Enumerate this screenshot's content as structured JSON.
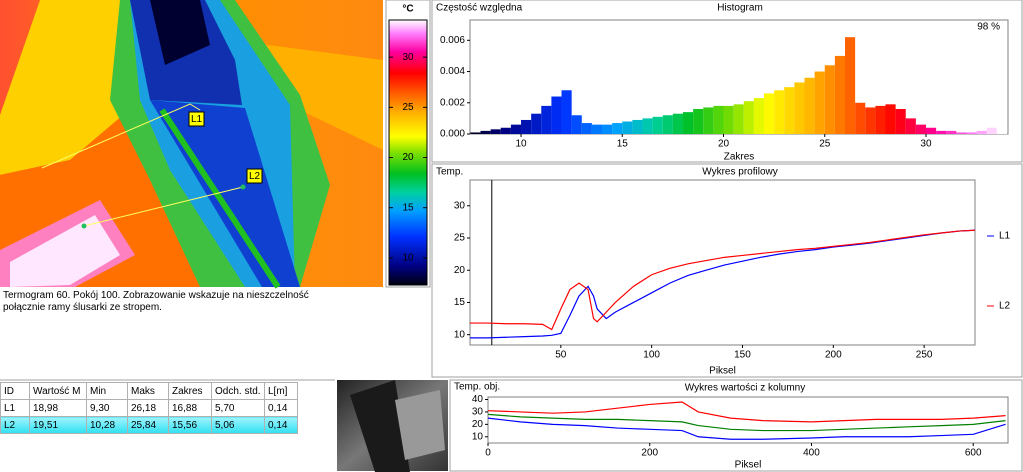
{
  "thermogram": {
    "labels": [
      "L1",
      "L2"
    ]
  },
  "colorbar": {
    "unit": "°C",
    "ylim": [
      7.3,
      33.7
    ],
    "yticks": [
      10,
      15,
      20,
      25,
      30
    ]
  },
  "caption": "Termogram 60. Pokój 100. Zobrazowanie wskazuje na nieszczelność połącznie ramy ślusarki ze stropem.",
  "table": {
    "header": [
      "ID",
      "Wartość M",
      "Min",
      "Maks",
      "Zakres",
      "Odch. std.",
      "L[m]"
    ],
    "rows": [
      [
        "L1",
        "18,98",
        "9,30",
        "26,18",
        "16,88",
        "5,70",
        "0,14"
      ],
      [
        "L2",
        "19,51",
        "10,28",
        "25,84",
        "15,56",
        "5,06",
        "0,14"
      ]
    ]
  },
  "chart_data": [
    {
      "type": "histogram",
      "title": "Histogram",
      "ylabel": "Częstość względna",
      "xlabel": "Zakres",
      "annotation": "98 %",
      "bins": [
        7.5,
        8,
        8.5,
        9,
        9.5,
        10,
        10.5,
        11,
        11.5,
        12,
        12.5,
        13,
        13.5,
        14,
        14.5,
        15,
        15.5,
        16,
        16.5,
        17,
        17.5,
        18,
        18.5,
        19,
        19.5,
        20,
        20.5,
        21,
        21.5,
        22,
        22.5,
        23,
        23.5,
        24,
        24.5,
        25,
        25.5,
        26,
        26.5,
        27,
        27.5,
        28,
        28.5,
        29,
        29.5,
        30,
        30.5,
        31,
        31.5,
        32,
        32.5,
        33,
        33.5,
        34
      ],
      "counts": [
        0.0001,
        0.0002,
        0.0003,
        0.0004,
        0.0006,
        0.0009,
        0.0013,
        0.0018,
        0.0024,
        0.0028,
        0.0012,
        0.0007,
        0.0006,
        0.0006,
        0.0007,
        0.0008,
        0.0009,
        0.001,
        0.0011,
        0.0012,
        0.0013,
        0.0014,
        0.0016,
        0.0017,
        0.0018,
        0.0018,
        0.0019,
        0.0021,
        0.0023,
        0.0026,
        0.0028,
        0.003,
        0.0033,
        0.0036,
        0.004,
        0.0044,
        0.005,
        0.0062,
        0.002,
        0.0017,
        0.0018,
        0.0019,
        0.0016,
        0.001,
        0.0006,
        0.0004,
        0.0002,
        0.0002,
        0.0001,
        0.0001,
        0.0002,
        0.0004,
        0.0006
      ],
      "xlim": [
        7.48,
        34.05
      ],
      "ylim": [
        0,
        0.0073
      ],
      "xticks": [
        10,
        15,
        20,
        25,
        30
      ],
      "yticks": [
        {
          "value": 0,
          "label": "0.000"
        },
        {
          "value": 0.002,
          "label": "0.002"
        },
        {
          "value": 0.004,
          "label": "0.004"
        },
        {
          "value": 0.006,
          "label": "0.006"
        }
      ]
    },
    {
      "type": "line",
      "title": "Wykres profilowy",
      "ylabel": "Temp.",
      "xlabel": "Piksel",
      "legend": "right",
      "x": [
        0,
        10,
        20,
        30,
        40,
        45,
        50,
        55,
        60,
        65,
        68,
        70,
        75,
        80,
        90,
        100,
        110,
        120,
        130,
        140,
        150,
        160,
        170,
        180,
        190,
        200,
        210,
        220,
        230,
        240,
        250,
        260,
        270,
        278
      ],
      "series": [
        {
          "name": "L1",
          "color": "#0000ff",
          "values": [
            9.5,
            9.5,
            9.6,
            9.7,
            9.8,
            9.9,
            10.2,
            13,
            16,
            17.5,
            16,
            14,
            12.5,
            13.5,
            15,
            16.5,
            18,
            19.2,
            20,
            20.8,
            21.4,
            22,
            22.5,
            22.9,
            23.2,
            23.6,
            23.9,
            24.2,
            24.6,
            25,
            25.4,
            25.8,
            26.1,
            26.2
          ]
        },
        {
          "name": "L2",
          "color": "#ff0000",
          "values": [
            11.8,
            11.8,
            11.7,
            11.7,
            11.6,
            10.8,
            14,
            17,
            18,
            17,
            12.5,
            12,
            13.5,
            15,
            17.5,
            19.3,
            20.3,
            21,
            21.5,
            22,
            22.3,
            22.6,
            22.9,
            23.2,
            23.4,
            23.7,
            24,
            24.3,
            24.7,
            25.1,
            25.5,
            25.8,
            26.1,
            26.2
          ]
        }
      ],
      "xlim": [
        0,
        278
      ],
      "ylim": [
        8.4,
        34
      ],
      "xticks": [
        50,
        100,
        150,
        200,
        250
      ],
      "yticks": [
        10,
        15,
        20,
        25,
        30
      ]
    },
    {
      "type": "line",
      "title": "Wykres wartości z kolumny",
      "ylabel": "Temp. obj.",
      "xlabel": "Piksel",
      "x": [
        0,
        40,
        80,
        120,
        160,
        200,
        240,
        260,
        300,
        340,
        400,
        440,
        480,
        520,
        560,
        600,
        640
      ],
      "series": [
        {
          "color": "#ff0000",
          "values": [
            31,
            30,
            29,
            30,
            33,
            36,
            38,
            30,
            25,
            23,
            22,
            23,
            24,
            24,
            24,
            25,
            27
          ]
        },
        {
          "color": "#008000",
          "values": [
            28,
            26,
            25,
            24,
            24,
            23,
            22,
            19,
            16,
            15,
            15,
            16,
            17,
            18,
            19,
            20,
            23
          ]
        },
        {
          "color": "#0000ff",
          "values": [
            25,
            22,
            20,
            19,
            17,
            16,
            15,
            10,
            8,
            8,
            9,
            10,
            10,
            10,
            11,
            12,
            20
          ]
        }
      ],
      "xlim": [
        0,
        643
      ],
      "ylim": [
        5,
        42
      ],
      "xticks": [
        0,
        200,
        400,
        600
      ],
      "yticks": [
        10,
        20,
        30,
        40
      ]
    }
  ]
}
